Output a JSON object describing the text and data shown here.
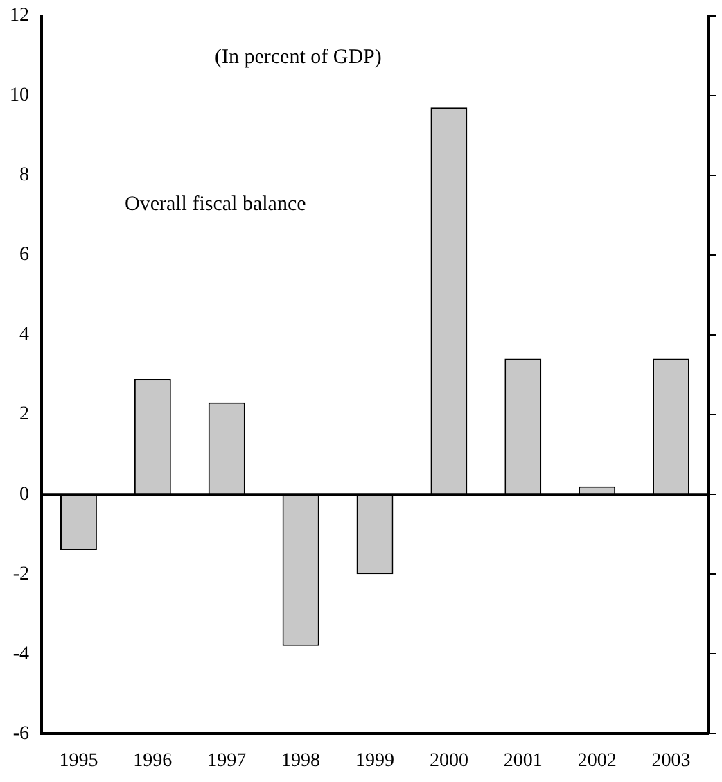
{
  "chart_data": {
    "type": "bar",
    "subtitle": "(In percent of GDP)",
    "annotations": [
      "Overall fiscal balance"
    ],
    "categories": [
      "1995",
      "1996",
      "1997",
      "1998",
      "1999",
      "2000",
      "2001",
      "2002",
      "2003"
    ],
    "values": [
      -1.4,
      2.9,
      2.3,
      -3.8,
      -2.0,
      9.7,
      3.4,
      0.2,
      3.4
    ],
    "color": "#c8c8c8",
    "ylim": [
      -6,
      12
    ],
    "yticks": [
      -6,
      -4,
      -2,
      0,
      2,
      4,
      6,
      8,
      10,
      12
    ],
    "grid": false,
    "legend": false,
    "ref_lines": [
      {
        "axis": "y",
        "value": 0,
        "color": "#000000"
      }
    ]
  }
}
